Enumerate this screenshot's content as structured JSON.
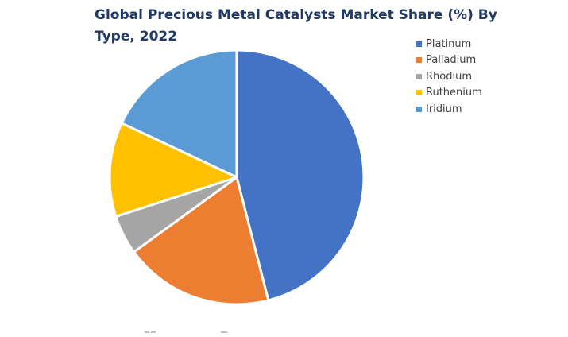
{
  "chart_data": {
    "type": "pie",
    "title": "Global Precious Metal Catalysts Market Share (%) By Type, 2022",
    "legend_position": "top-right",
    "slices": [
      {
        "label": "Platinum",
        "value": 46,
        "color": "#4472c4"
      },
      {
        "label": "Palladium",
        "value": 19,
        "color": "#ed7d31"
      },
      {
        "label": "Rhodium",
        "value": 5,
        "color": "#a5a5a5"
      },
      {
        "label": "Ruthenium",
        "value": 12,
        "color": "#ffc000"
      },
      {
        "label": "Iridium",
        "value": 18,
        "color": "#5b9bd5"
      }
    ]
  }
}
